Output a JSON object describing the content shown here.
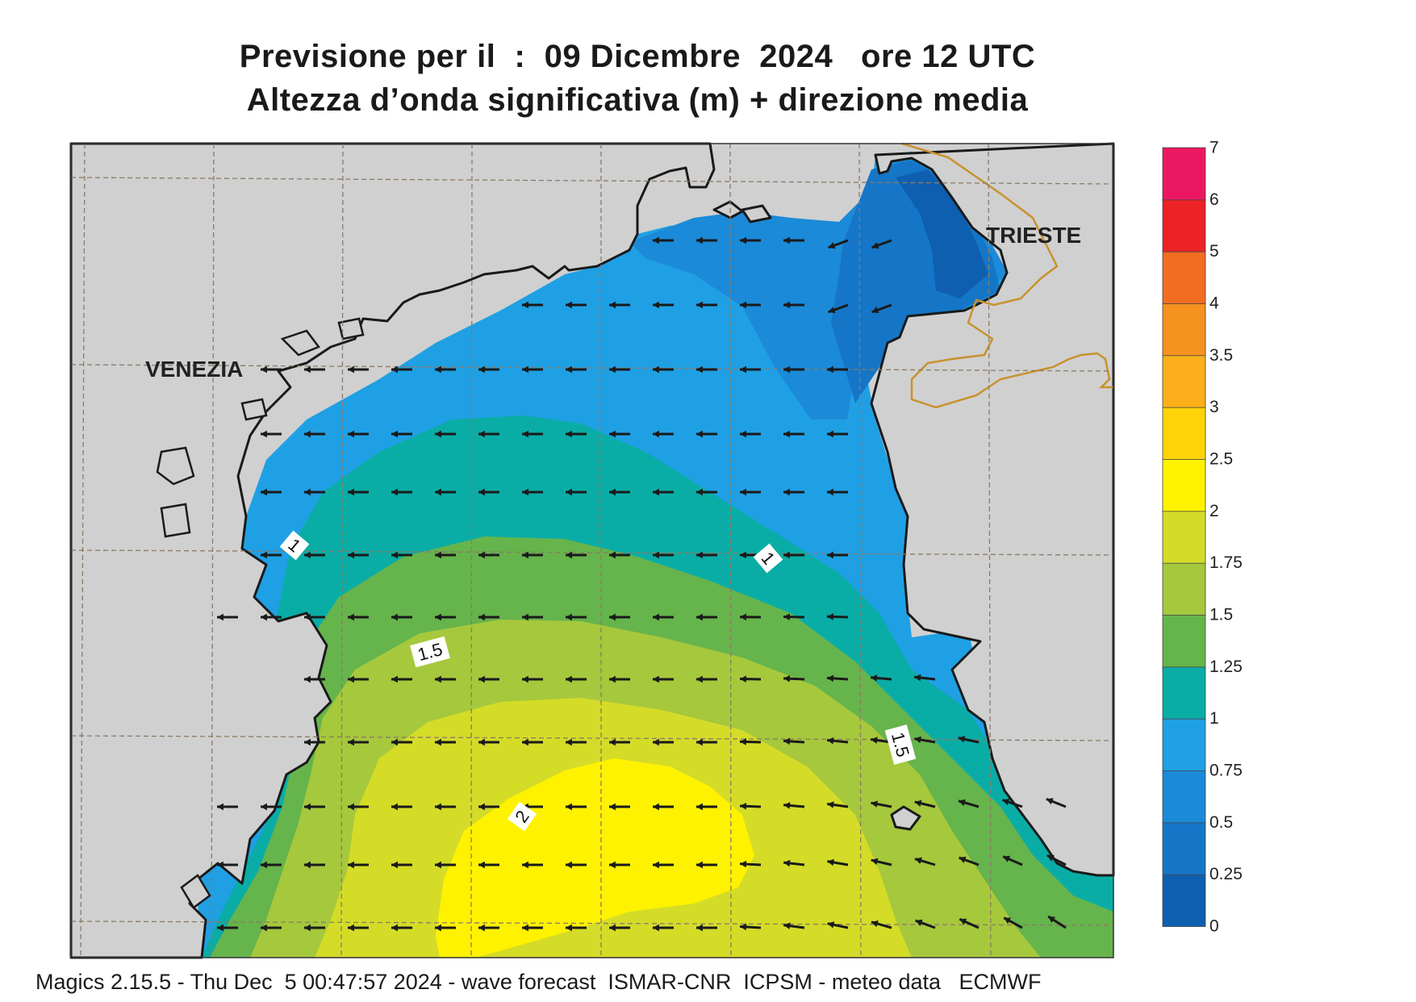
{
  "title": {
    "line1": "Previsione per il  :  09 Dicembre  2024   ore 12 UTC",
    "line2": "Altezza d’onda significativa (m) + direzione media"
  },
  "places": [
    {
      "name": "VENEZIA"
    },
    {
      "name": "TRIESTE"
    }
  ],
  "footer": "Magics 2.15.5 - Thu Dec  5 00:47:57 2024 - wave forecast  ISMAR-CNR  ICPSM - meteo data   ECMWF",
  "legend": {
    "ticks": [
      "0",
      "0.25",
      "0.5",
      "0.75",
      "1",
      "1.25",
      "1.5",
      "1.75",
      "2",
      "2.5",
      "3",
      "3.5",
      "4",
      "5",
      "6",
      "7"
    ],
    "colors": [
      "#0f5fb0",
      "#1576c8",
      "#1b8ad8",
      "#1fa0e4",
      "#0aada6",
      "#66b44c",
      "#a6c83c",
      "#d4dc28",
      "#fff200",
      "#fed307",
      "#fbb01b",
      "#f6921e",
      "#f26d22",
      "#ec2226",
      "#ec1762"
    ]
  },
  "contour_labels": [
    "1",
    "1",
    "1.5",
    "1.5",
    "2"
  ],
  "colors": {
    "land": "#d0d0d0",
    "coast": "#1a1a1a",
    "border": "#c8922c",
    "grid": "#8c7a66",
    "arrow": "#1a1a1a"
  }
}
